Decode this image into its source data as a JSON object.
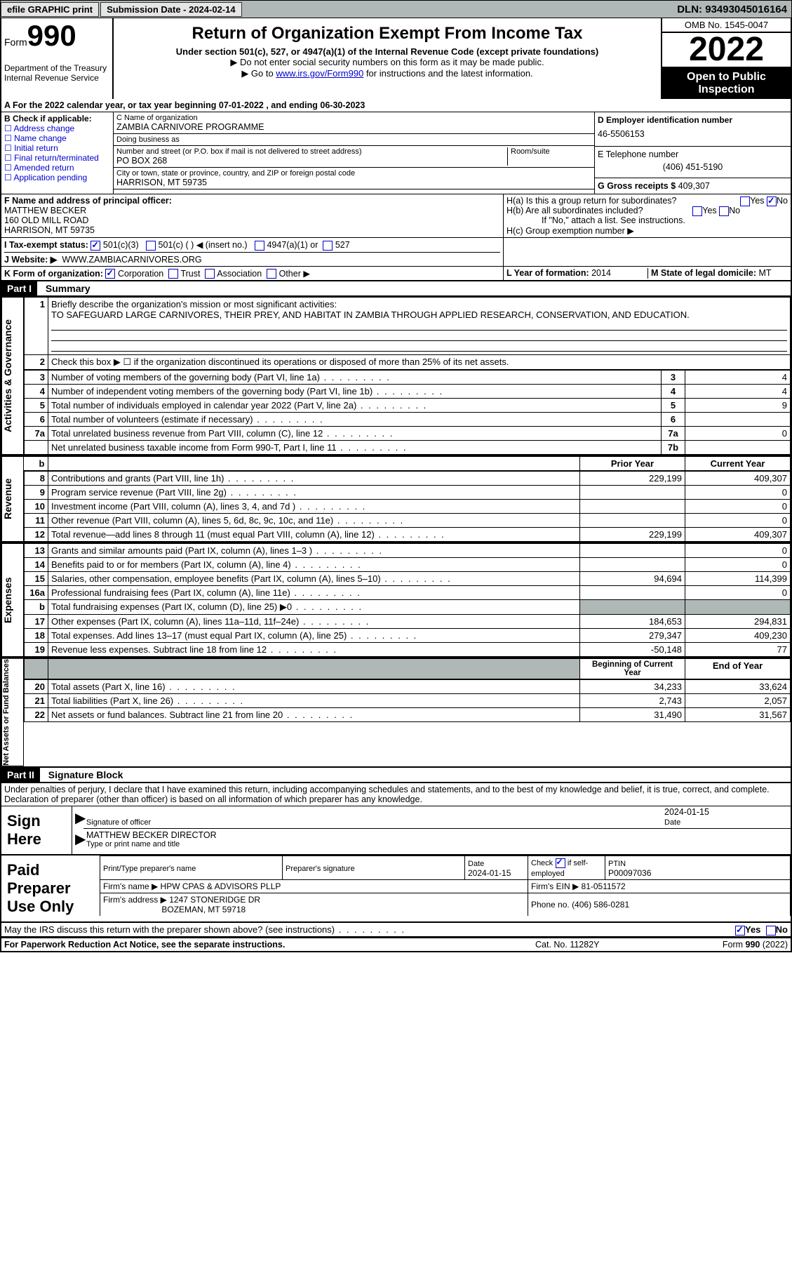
{
  "topbar": {
    "efile": "efile GRAPHIC print",
    "submission": "Submission Date - 2024-02-14",
    "dln": "DLN: 93493045016164"
  },
  "header": {
    "form_label": "Form",
    "form_no": "990",
    "dept": "Department of the Treasury Internal Revenue Service",
    "title": "Return of Organization Exempt From Income Tax",
    "subtitle": "Under section 501(c), 527, or 4947(a)(1) of the Internal Revenue Code (except private foundations)",
    "note1": "▶ Do not enter social security numbers on this form as it may be made public.",
    "note2_pre": "▶ Go to ",
    "note2_link": "www.irs.gov/Form990",
    "note2_post": " for instructions and the latest information.",
    "omb": "OMB No. 1545-0047",
    "year": "2022",
    "open": "Open to Public Inspection"
  },
  "A": {
    "text": "A For the 2022 calendar year, or tax year beginning 07-01-2022   , and ending 06-30-2023"
  },
  "B": {
    "label": "B Check if applicable:",
    "opts": [
      "Address change",
      "Name change",
      "Initial return",
      "Final return/terminated",
      "Amended return",
      "Application pending"
    ]
  },
  "C": {
    "name_label": "C Name of organization",
    "name": "ZAMBIA CARNIVORE PROGRAMME",
    "dba_label": "Doing business as",
    "dba": "",
    "street_label": "Number and street (or P.O. box if mail is not delivered to street address)",
    "street": "PO BOX 268",
    "room_label": "Room/suite",
    "city_label": "City or town, state or province, country, and ZIP or foreign postal code",
    "city": "HARRISON, MT  59735"
  },
  "D": {
    "label": "D Employer identification number",
    "val": "46-5506153"
  },
  "E": {
    "label": "E Telephone number",
    "val": "(406) 451-5190"
  },
  "G": {
    "label": "G Gross receipts $",
    "val": "409,307"
  },
  "F": {
    "label": "F  Name and address of principal officer:",
    "name": "MATTHEW BECKER",
    "addr1": "160 OLD MILL ROAD",
    "addr2": "HARRISON, MT  59735"
  },
  "H": {
    "a": "H(a)  Is this a group return for subordinates?",
    "b": "H(b)  Are all subordinates included?",
    "b_note": "If \"No,\" attach a list. See instructions.",
    "c": "H(c)  Group exemption number ▶",
    "yes": "Yes",
    "no": "No"
  },
  "I": {
    "label": "I   Tax-exempt status:",
    "o1": "501(c)(3)",
    "o2": "501(c) (  ) ◀ (insert no.)",
    "o3": "4947(a)(1) or",
    "o4": "527"
  },
  "J": {
    "label": "J   Website: ▶",
    "val": "WWW.ZAMBIACARNIVORES.ORG"
  },
  "K": {
    "label": "K Form of organization:",
    "o1": "Corporation",
    "o2": "Trust",
    "o3": "Association",
    "o4": "Other ▶"
  },
  "L": {
    "label": "L Year of formation:",
    "val": "2014"
  },
  "M": {
    "label": "M State of legal domicile:",
    "val": "MT"
  },
  "part1": {
    "hdr": "Part I",
    "title": "Summary"
  },
  "summary": {
    "l1": "Briefly describe the organization's mission or most significant activities:",
    "l1_val": "TO SAFEGUARD LARGE CARNIVORES, THEIR PREY, AND HABITAT IN ZAMBIA THROUGH APPLIED RESEARCH, CONSERVATION, AND EDUCATION.",
    "l2": "Check this box ▶ ☐  if the organization discontinued its operations or disposed of more than 25% of its net assets.",
    "rows_ag": [
      {
        "n": "3",
        "t": "Number of voting members of the governing body (Part VI, line 1a)",
        "ln": "3",
        "v": "4"
      },
      {
        "n": "4",
        "t": "Number of independent voting members of the governing body (Part VI, line 1b)",
        "ln": "4",
        "v": "4"
      },
      {
        "n": "5",
        "t": "Total number of individuals employed in calendar year 2022 (Part V, line 2a)",
        "ln": "5",
        "v": "9"
      },
      {
        "n": "6",
        "t": "Total number of volunteers (estimate if necessary)",
        "ln": "6",
        "v": ""
      },
      {
        "n": "7a",
        "t": "Total unrelated business revenue from Part VIII, column (C), line 12",
        "ln": "7a",
        "v": "0"
      },
      {
        "n": "",
        "t": "Net unrelated business taxable income from Form 990-T, Part I, line 11",
        "ln": "7b",
        "v": ""
      }
    ],
    "col_hdr_prior": "Prior Year",
    "col_hdr_current": "Current Year",
    "rows_rev": [
      {
        "n": "8",
        "t": "Contributions and grants (Part VIII, line 1h)",
        "p": "229,199",
        "c": "409,307"
      },
      {
        "n": "9",
        "t": "Program service revenue (Part VIII, line 2g)",
        "p": "",
        "c": "0"
      },
      {
        "n": "10",
        "t": "Investment income (Part VIII, column (A), lines 3, 4, and 7d )",
        "p": "",
        "c": "0"
      },
      {
        "n": "11",
        "t": "Other revenue (Part VIII, column (A), lines 5, 6d, 8c, 9c, 10c, and 11e)",
        "p": "",
        "c": "0"
      },
      {
        "n": "12",
        "t": "Total revenue—add lines 8 through 11 (must equal Part VIII, column (A), line 12)",
        "p": "229,199",
        "c": "409,307"
      }
    ],
    "rows_exp": [
      {
        "n": "13",
        "t": "Grants and similar amounts paid (Part IX, column (A), lines 1–3 )",
        "p": "",
        "c": "0"
      },
      {
        "n": "14",
        "t": "Benefits paid to or for members (Part IX, column (A), line 4)",
        "p": "",
        "c": "0"
      },
      {
        "n": "15",
        "t": "Salaries, other compensation, employee benefits (Part IX, column (A), lines 5–10)",
        "p": "94,694",
        "c": "114,399"
      },
      {
        "n": "16a",
        "t": "Professional fundraising fees (Part IX, column (A), line 11e)",
        "p": "",
        "c": "0"
      },
      {
        "n": "b",
        "t": "Total fundraising expenses (Part IX, column (D), line 25) ▶0",
        "p": "shade",
        "c": "shade"
      },
      {
        "n": "17",
        "t": "Other expenses (Part IX, column (A), lines 11a–11d, 11f–24e)",
        "p": "184,653",
        "c": "294,831"
      },
      {
        "n": "18",
        "t": "Total expenses. Add lines 13–17 (must equal Part IX, column (A), line 25)",
        "p": "279,347",
        "c": "409,230"
      },
      {
        "n": "19",
        "t": "Revenue less expenses. Subtract line 18 from line 12",
        "p": "-50,148",
        "c": "77"
      }
    ],
    "col_hdr_begin": "Beginning of Current Year",
    "col_hdr_end": "End of Year",
    "rows_net": [
      {
        "n": "20",
        "t": "Total assets (Part X, line 16)",
        "p": "34,233",
        "c": "33,624"
      },
      {
        "n": "21",
        "t": "Total liabilities (Part X, line 26)",
        "p": "2,743",
        "c": "2,057"
      },
      {
        "n": "22",
        "t": "Net assets or fund balances. Subtract line 21 from line 20",
        "p": "31,490",
        "c": "31,567"
      }
    ],
    "side_ag": "Activities & Governance",
    "side_rev": "Revenue",
    "side_exp": "Expenses",
    "side_net": "Net Assets or Fund Balances"
  },
  "part2": {
    "hdr": "Part II",
    "title": "Signature Block"
  },
  "sig": {
    "decl": "Under penalties of perjury, I declare that I have examined this return, including accompanying schedules and statements, and to the best of my knowledge and belief, it is true, correct, and complete. Declaration of preparer (other than officer) is based on all information of which preparer has any knowledge.",
    "sign_here": "Sign Here",
    "sig_officer": "Signature of officer",
    "date": "Date",
    "date_val": "2024-01-15",
    "name": "MATTHEW BECKER  DIRECTOR",
    "name_lbl": "Type or print name and title"
  },
  "prep": {
    "label": "Paid Preparer Use Only",
    "c1": "Print/Type preparer's name",
    "c2": "Preparer's signature",
    "c3_l": "Date",
    "c3": "2024-01-15",
    "c4_l": "Check",
    "c4_v": "if self-employed",
    "c5_l": "PTIN",
    "c5": "P00097036",
    "firm_l": "Firm's name   ▶",
    "firm": "HPW CPAS & ADVISORS PLLP",
    "ein_l": "Firm's EIN ▶",
    "ein": "81-0511572",
    "addr_l": "Firm's address ▶",
    "addr1": "1247 STONERIDGE DR",
    "addr2": "BOZEMAN, MT  59718",
    "phone_l": "Phone no.",
    "phone": "(406) 586-0281"
  },
  "may": {
    "text": "May the IRS discuss this return with the preparer shown above? (see instructions)",
    "yes": "Yes",
    "no": "No"
  },
  "footer": {
    "left": "For Paperwork Reduction Act Notice, see the separate instructions.",
    "mid": "Cat. No. 11282Y",
    "right": "Form 990 (2022)"
  }
}
